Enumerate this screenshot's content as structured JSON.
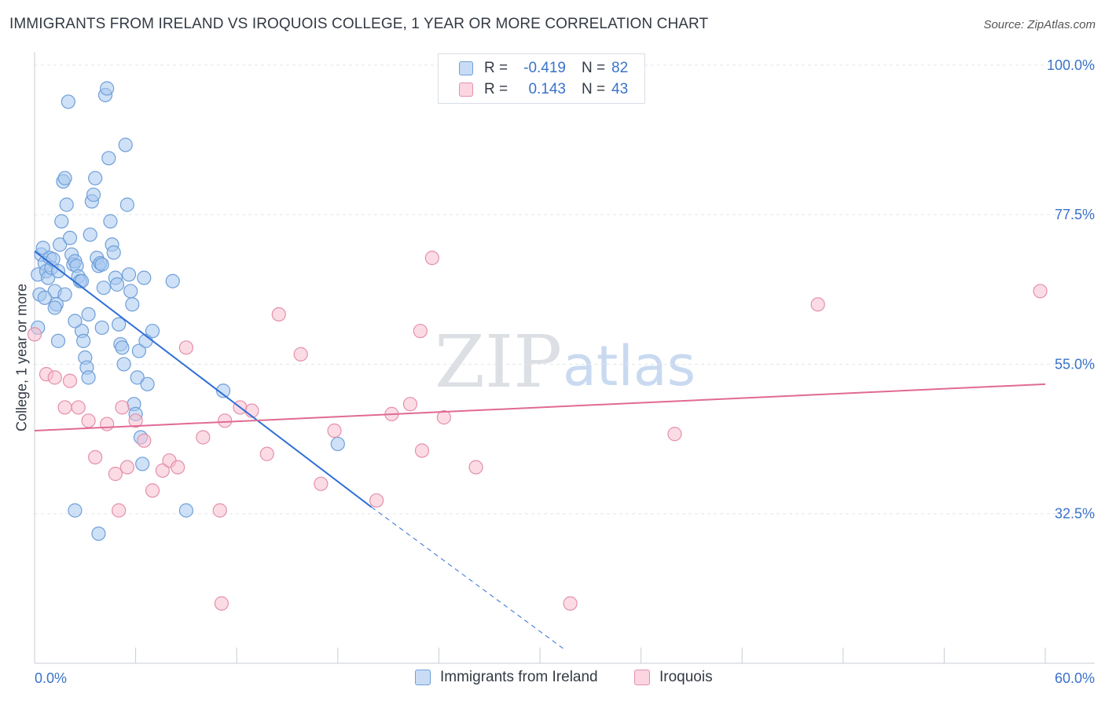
{
  "title": "IMMIGRANTS FROM IRELAND VS IROQUOIS COLLEGE, 1 YEAR OR MORE CORRELATION CHART",
  "source": "Source: ZipAtlas.com",
  "watermark": {
    "zip": "ZIP",
    "atlas": "atlas"
  },
  "legend": {
    "rows": [
      {
        "r_label": "R =",
        "r_value": "-0.419",
        "n_label": "N =",
        "n_value": "82",
        "color": "#a8c8f0",
        "border": "#6f9fd8"
      },
      {
        "r_label": "R =",
        "r_value": "0.143",
        "n_label": "N =",
        "n_value": "43",
        "color": "#f7bfd0",
        "border": "#e58fab"
      }
    ]
  },
  "bottom_legend": [
    {
      "label": "Immigrants from Ireland"
    },
    {
      "label": "Iroquois"
    }
  ],
  "chart_data": {
    "type": "scatter",
    "title": "IMMIGRANTS FROM IRELAND VS IROQUOIS COLLEGE, 1 YEAR OR MORE CORRELATION CHART",
    "xlabel": "",
    "ylabel": "College, 1 year or more",
    "xlim": [
      0,
      60
    ],
    "ylim": [
      10,
      102
    ],
    "x_tick_labels": [
      "0.0%",
      "60.0%"
    ],
    "y_ticks": [
      32.5,
      55.0,
      77.5,
      100.0
    ],
    "y_tick_labels": [
      "32.5%",
      "55.0%",
      "77.5%",
      "100.0%"
    ],
    "grid": true,
    "colors": {
      "ireland_fill": "#a8c8f0",
      "ireland_stroke": "#6f9fd8",
      "ireland_line": "#2f6fd6",
      "iroquois_fill": "#f7bfd0",
      "iroquois_stroke": "#e58fab",
      "iroquois_line": "#e06a93",
      "tick_label": "#3a73c9"
    },
    "series": [
      {
        "name": "Immigrants from Ireland",
        "points": [
          [
            0.2,
            68.5
          ],
          [
            0.3,
            65.5
          ],
          [
            0.2,
            60.5
          ],
          [
            0.4,
            71.5
          ],
          [
            0.5,
            72.5
          ],
          [
            0.6,
            70.2
          ],
          [
            0.7,
            69.0
          ],
          [
            0.8,
            68.0
          ],
          [
            0.9,
            71.0
          ],
          [
            1.0,
            69.5
          ],
          [
            1.1,
            70.8
          ],
          [
            1.2,
            66.0
          ],
          [
            1.3,
            64.0
          ],
          [
            1.4,
            58.5
          ],
          [
            1.5,
            73.0
          ],
          [
            1.6,
            76.5
          ],
          [
            1.7,
            82.5
          ],
          [
            1.8,
            83.0
          ],
          [
            1.9,
            79.0
          ],
          [
            2.0,
            94.5
          ],
          [
            2.1,
            74.0
          ],
          [
            2.2,
            71.5
          ],
          [
            2.3,
            70.0
          ],
          [
            2.4,
            70.5
          ],
          [
            2.5,
            69.8
          ],
          [
            2.6,
            68.2
          ],
          [
            2.7,
            67.5
          ],
          [
            2.8,
            60.0
          ],
          [
            2.9,
            58.5
          ],
          [
            3.0,
            56.0
          ],
          [
            3.1,
            54.5
          ],
          [
            3.2,
            53.0
          ],
          [
            3.3,
            74.5
          ],
          [
            3.4,
            79.5
          ],
          [
            3.5,
            80.5
          ],
          [
            3.6,
            83.0
          ],
          [
            3.7,
            71.0
          ],
          [
            3.8,
            69.8
          ],
          [
            3.9,
            70.2
          ],
          [
            4.0,
            70.0
          ],
          [
            4.1,
            66.5
          ],
          [
            4.2,
            95.5
          ],
          [
            4.3,
            96.5
          ],
          [
            4.4,
            86.0
          ],
          [
            4.5,
            76.5
          ],
          [
            4.6,
            73.0
          ],
          [
            4.7,
            71.8
          ],
          [
            4.8,
            68.0
          ],
          [
            4.9,
            67.0
          ],
          [
            5.0,
            61.0
          ],
          [
            5.1,
            58.0
          ],
          [
            5.2,
            57.5
          ],
          [
            5.3,
            55.0
          ],
          [
            5.4,
            88.0
          ],
          [
            5.5,
            79.0
          ],
          [
            5.6,
            68.5
          ],
          [
            5.7,
            66.0
          ],
          [
            5.8,
            64.0
          ],
          [
            5.9,
            49.0
          ],
          [
            6.0,
            47.5
          ],
          [
            6.1,
            53.0
          ],
          [
            6.2,
            57.0
          ],
          [
            6.3,
            44.0
          ],
          [
            6.4,
            40.0
          ],
          [
            6.5,
            68.0
          ],
          [
            6.6,
            58.5
          ],
          [
            6.7,
            52.0
          ],
          [
            2.4,
            33.0
          ],
          [
            3.8,
            29.5
          ],
          [
            7.0,
            60.0
          ],
          [
            8.2,
            67.5
          ],
          [
            9.0,
            33.0
          ],
          [
            11.2,
            51.0
          ],
          [
            18.0,
            43.0
          ],
          [
            0.6,
            65.0
          ],
          [
            1.2,
            63.5
          ],
          [
            1.8,
            65.5
          ],
          [
            2.4,
            61.5
          ],
          [
            3.2,
            62.5
          ],
          [
            4.0,
            60.5
          ],
          [
            1.4,
            69.0
          ],
          [
            2.8,
            67.5
          ]
        ]
      },
      {
        "name": "Iroquois",
        "points": [
          [
            0.0,
            59.5
          ],
          [
            0.7,
            53.5
          ],
          [
            1.2,
            53.0
          ],
          [
            1.8,
            48.5
          ],
          [
            2.1,
            52.5
          ],
          [
            2.6,
            48.5
          ],
          [
            3.2,
            46.5
          ],
          [
            3.6,
            41.0
          ],
          [
            4.3,
            46.0
          ],
          [
            4.8,
            38.5
          ],
          [
            5.0,
            33.0
          ],
          [
            5.2,
            48.5
          ],
          [
            5.5,
            39.5
          ],
          [
            6.0,
            46.5
          ],
          [
            6.5,
            43.5
          ],
          [
            7.0,
            36.0
          ],
          [
            7.6,
            39.0
          ],
          [
            8.0,
            40.5
          ],
          [
            8.5,
            39.5
          ],
          [
            9.0,
            57.5
          ],
          [
            10.0,
            44.0
          ],
          [
            11.0,
            33.0
          ],
          [
            11.3,
            46.5
          ],
          [
            12.2,
            48.5
          ],
          [
            12.9,
            48.0
          ],
          [
            13.8,
            41.5
          ],
          [
            14.5,
            62.5
          ],
          [
            15.8,
            56.5
          ],
          [
            17.0,
            37.0
          ],
          [
            17.8,
            45.0
          ],
          [
            20.3,
            34.5
          ],
          [
            21.2,
            47.5
          ],
          [
            22.3,
            49.0
          ],
          [
            23.0,
            42.0
          ],
          [
            22.9,
            60.0
          ],
          [
            23.6,
            71.0
          ],
          [
            24.3,
            47.0
          ],
          [
            26.2,
            39.5
          ],
          [
            31.8,
            19.0
          ],
          [
            38.0,
            44.5
          ],
          [
            46.5,
            64.0
          ],
          [
            59.7,
            66.0
          ],
          [
            11.1,
            19.0
          ]
        ]
      }
    ],
    "trend_lines": [
      {
        "series": "Immigrants from Ireland",
        "solid_from": [
          0.0,
          72.0
        ],
        "solid_to": [
          20.0,
          33.5
        ],
        "dashed_to": [
          31.5,
          12.0
        ]
      },
      {
        "series": "Iroquois",
        "from": [
          0.0,
          45.0
        ],
        "to": [
          60.0,
          52.0
        ]
      }
    ]
  }
}
